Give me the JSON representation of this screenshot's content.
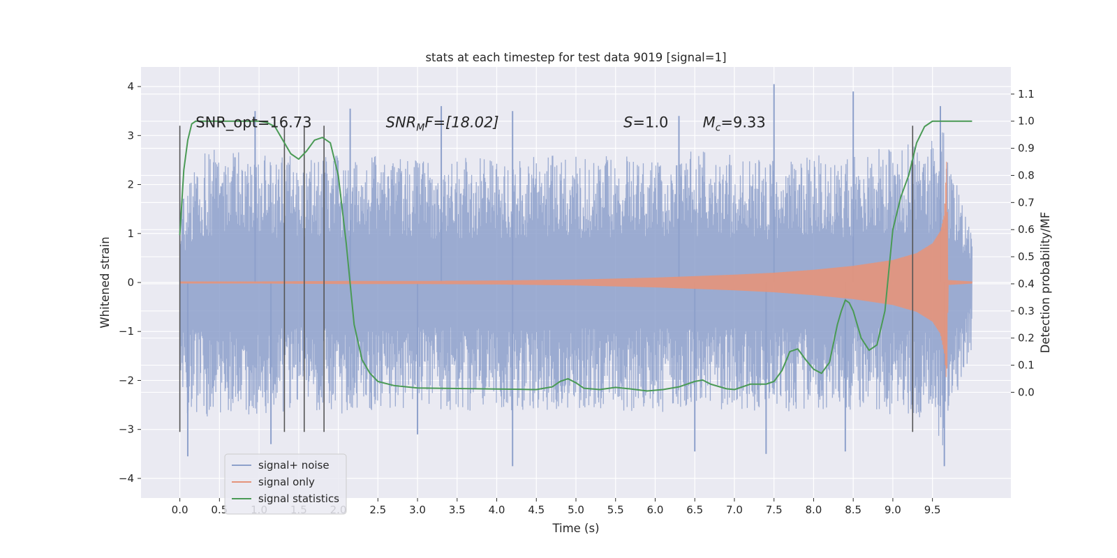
{
  "chart_data": {
    "type": "line",
    "title": "stats at each timestep for test data 9019 [signal=1]",
    "xlabel": "Time (s)",
    "ylabel": "Whitened strain",
    "ylabel_right": "Detection probability/MF",
    "xlim": [
      -0.49,
      10.49
    ],
    "ylim": [
      -4.4,
      4.4
    ],
    "ylim_right": [
      -0.39,
      1.2
    ],
    "x_ticks": [
      "0.0",
      "0.5",
      "1.0",
      "1.5",
      "2.0",
      "2.5",
      "3.0",
      "3.5",
      "4.0",
      "4.5",
      "5.0",
      "5.5",
      "6.0",
      "6.5",
      "7.0",
      "7.5",
      "8.0",
      "8.5",
      "9.0",
      "9.5"
    ],
    "y_ticks": [
      "4",
      "3",
      "2",
      "1",
      "0",
      "−1",
      "−2",
      "−3",
      "−4"
    ],
    "y_ticks_right": [
      "1.1",
      "1.0",
      "0.9",
      "0.8",
      "0.7",
      "0.6",
      "0.5",
      "0.4",
      "0.3",
      "0.2",
      "0.1",
      "0.0"
    ],
    "grid": true,
    "legend_position": "lower-left",
    "annotations": [
      {
        "text": "SNR_opt=16.73",
        "x": 0.2,
        "y": 3.17
      },
      {
        "text": "SNR",
        "sub": "M",
        "rest": "F=[18.02]",
        "x": 2.6,
        "y": 3.17
      },
      {
        "text": "S",
        "rest": "=1.0",
        "x": 5.6,
        "y": 3.17
      },
      {
        "text": "M",
        "sub": "c",
        "rest": "=9.33",
        "x": 6.6,
        "y": 3.17
      }
    ],
    "vlines": {
      "x": [
        0.0,
        1.32,
        1.57,
        1.82,
        9.25
      ],
      "ymin": -3.05,
      "ymax": 3.2,
      "color": "#555555"
    },
    "series": [
      {
        "name": "signal+ noise",
        "color": "#8da0cb",
        "envelope": {
          "x": [
            0.0,
            0.25,
            0.5,
            1.0,
            1.5,
            2.0,
            2.5,
            3.0,
            3.5,
            4.0,
            4.5,
            5.0,
            5.5,
            6.0,
            6.5,
            7.0,
            7.5,
            8.0,
            8.5,
            9.0,
            9.5,
            9.65,
            9.68,
            9.75,
            10.0
          ],
          "upper": [
            1.6,
            2.6,
            2.8,
            2.6,
            2.6,
            2.6,
            2.6,
            2.5,
            2.6,
            2.5,
            2.6,
            2.6,
            2.6,
            2.6,
            2.7,
            2.6,
            2.5,
            2.6,
            2.6,
            2.8,
            2.9,
            3.1,
            2.6,
            2.3,
            1.0
          ],
          "lower": [
            -2.6,
            -2.8,
            -2.7,
            -2.7,
            -2.6,
            -2.7,
            -2.6,
            -2.6,
            -2.6,
            -2.7,
            -2.6,
            -2.6,
            -2.6,
            -2.7,
            -2.6,
            -2.6,
            -2.7,
            -2.6,
            -2.6,
            -2.7,
            -2.8,
            -3.6,
            -2.9,
            -2.6,
            -1.4
          ]
        },
        "peaks": [
          {
            "x": 7.5,
            "y": 4.05
          },
          {
            "x": 8.5,
            "y": 3.9
          },
          {
            "x": 3.3,
            "y": 3.6
          },
          {
            "x": 2.15,
            "y": 3.55
          },
          {
            "x": 4.2,
            "y": 3.5
          },
          {
            "x": 0.95,
            "y": 3.5
          },
          {
            "x": 9.6,
            "y": 3.6
          },
          {
            "x": 6.3,
            "y": 3.4
          },
          {
            "x": 1.15,
            "y": -3.3
          },
          {
            "x": 4.2,
            "y": -3.75
          },
          {
            "x": 9.65,
            "y": -3.75
          },
          {
            "x": 0.1,
            "y": -3.55
          },
          {
            "x": 7.4,
            "y": -3.5
          },
          {
            "x": 6.5,
            "y": -3.45
          },
          {
            "x": 3.0,
            "y": -3.1
          },
          {
            "x": 8.4,
            "y": -3.45
          }
        ]
      },
      {
        "name": "signal only",
        "color": "#e5937a",
        "envelope": {
          "x": [
            0.0,
            1.0,
            2.0,
            3.0,
            4.0,
            5.0,
            5.5,
            6.0,
            6.5,
            7.0,
            7.5,
            8.0,
            8.5,
            9.0,
            9.3,
            9.5,
            9.6,
            9.65,
            9.68,
            9.7,
            10.0
          ],
          "upper": [
            0.02,
            0.02,
            0.03,
            0.03,
            0.04,
            0.06,
            0.08,
            0.1,
            0.13,
            0.16,
            0.2,
            0.26,
            0.34,
            0.46,
            0.6,
            0.8,
            1.05,
            1.4,
            2.55,
            0.05,
            0.02
          ],
          "lower": [
            -0.02,
            -0.02,
            -0.03,
            -0.03,
            -0.04,
            -0.06,
            -0.08,
            -0.1,
            -0.13,
            -0.16,
            -0.2,
            -0.26,
            -0.34,
            -0.46,
            -0.6,
            -0.8,
            -1.05,
            -1.45,
            -2.1,
            -0.05,
            -0.02
          ]
        }
      },
      {
        "name": "signal statistics",
        "color": "#4a9a55",
        "axis": "right",
        "x": [
          0.0,
          0.05,
          0.1,
          0.15,
          0.2,
          0.3,
          0.5,
          0.8,
          1.0,
          1.1,
          1.2,
          1.3,
          1.4,
          1.5,
          1.6,
          1.7,
          1.8,
          1.9,
          2.0,
          2.1,
          2.2,
          2.3,
          2.4,
          2.5,
          2.7,
          3.0,
          3.5,
          4.0,
          4.3,
          4.5,
          4.7,
          4.8,
          4.9,
          5.0,
          5.1,
          5.3,
          5.5,
          5.7,
          5.9,
          6.1,
          6.3,
          6.5,
          6.6,
          6.7,
          6.9,
          7.0,
          7.2,
          7.4,
          7.5,
          7.6,
          7.7,
          7.8,
          7.9,
          8.0,
          8.1,
          8.2,
          8.3,
          8.35,
          8.4,
          8.45,
          8.5,
          8.6,
          8.7,
          8.8,
          8.9,
          9.0,
          9.1,
          9.2,
          9.3,
          9.4,
          9.5,
          9.6,
          9.8,
          10.0
        ],
        "y": [
          0.58,
          0.82,
          0.93,
          0.99,
          1.0,
          1.0,
          1.0,
          1.0,
          1.0,
          0.995,
          0.98,
          0.93,
          0.88,
          0.86,
          0.89,
          0.93,
          0.94,
          0.92,
          0.8,
          0.55,
          0.25,
          0.12,
          0.07,
          0.04,
          0.025,
          0.016,
          0.014,
          0.012,
          0.011,
          0.01,
          0.02,
          0.04,
          0.05,
          0.035,
          0.015,
          0.01,
          0.018,
          0.012,
          0.005,
          0.01,
          0.02,
          0.04,
          0.045,
          0.03,
          0.013,
          0.01,
          0.03,
          0.03,
          0.04,
          0.08,
          0.15,
          0.16,
          0.12,
          0.085,
          0.07,
          0.11,
          0.25,
          0.3,
          0.34,
          0.33,
          0.3,
          0.2,
          0.155,
          0.175,
          0.3,
          0.6,
          0.72,
          0.8,
          0.92,
          0.98,
          1.0,
          1.0,
          1.0,
          1.0
        ]
      }
    ]
  }
}
